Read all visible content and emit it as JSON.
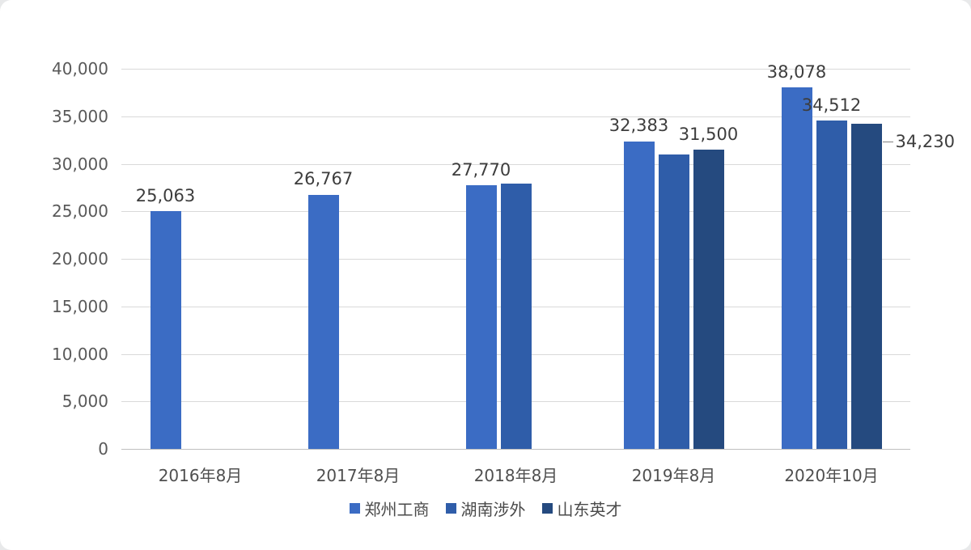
{
  "chart_data": {
    "type": "bar",
    "title": "",
    "categories": [
      "2016年8月",
      "2017年8月",
      "2018年8月",
      "2019年8月",
      "2020年10月"
    ],
    "series": [
      {
        "name": "郑州工商",
        "color": "#3b6cc4",
        "values": [
          25063,
          26767,
          27770,
          32383,
          38078
        ],
        "labels": [
          "25,063",
          "26,767",
          "27,770",
          "32,383",
          "38,078"
        ],
        "leader_indices": []
      },
      {
        "name": "湖南涉外",
        "color": "#2f5da9",
        "values": [
          null,
          null,
          27900,
          31000,
          34512
        ],
        "labels": [
          null,
          null,
          null,
          null,
          "34,512"
        ],
        "leader_indices": []
      },
      {
        "name": "山东英才",
        "color": "#254a7f",
        "values": [
          null,
          null,
          null,
          31500,
          34230
        ],
        "labels": [
          null,
          null,
          null,
          "31,500",
          "34,230"
        ],
        "leader_indices": [
          4
        ]
      }
    ],
    "ylim": [
      0,
      40000
    ],
    "ytick_step": 5000,
    "ytick_labels": [
      "0",
      "5,000",
      "10,000",
      "15,000",
      "20,000",
      "25,000",
      "30,000",
      "35,000",
      "40,000"
    ],
    "grid": true,
    "legend_position": "bottom",
    "colors": {
      "gridline": "#d9d9d9",
      "axis_line": "#bfbfbf",
      "tick_text": "#595959",
      "data_label_text": "#3d3d3d"
    }
  }
}
